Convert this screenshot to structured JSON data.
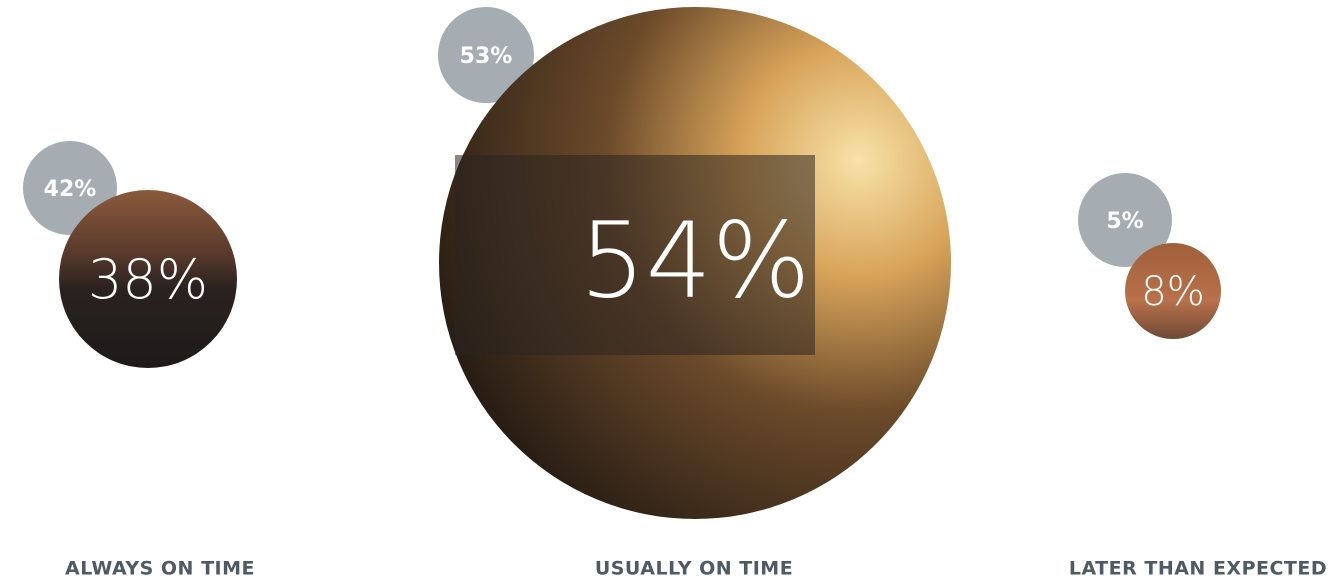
{
  "items": [
    {
      "previous": "42%",
      "current": "38%",
      "label": "ALWAYS ON TIME"
    },
    {
      "previous": "53%",
      "current": "54%",
      "label": "USUALLY ON TIME"
    },
    {
      "previous": "5%",
      "current": "8%",
      "label": "LATER THAN EXPECTED"
    }
  ]
}
